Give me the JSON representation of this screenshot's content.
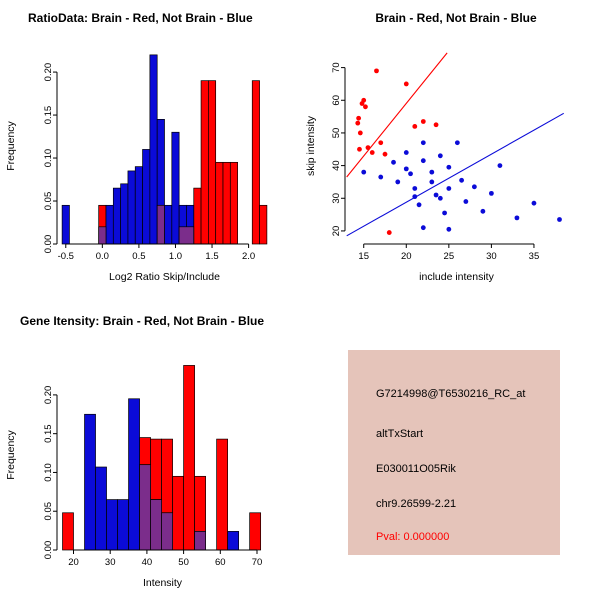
{
  "colors": {
    "red": "#ff0000",
    "blue": "#0b0bd8",
    "purple": "#7b2d8b",
    "axis": "#000000",
    "background": "#ffffff"
  },
  "chart_data": [
    {
      "type": "bar",
      "title": "RatioData: Brain - Red, Not Brain - Blue",
      "xlabel": "Log2 Ratio Skip/Include",
      "ylabel": "Frequency",
      "xlim": [
        -0.62,
        2.32
      ],
      "ylim": [
        0,
        0.228
      ],
      "xticks": [
        -0.5,
        0.0,
        0.5,
        1.0,
        1.5,
        2.0
      ],
      "xtick_labels": [
        "-0.5",
        "0.0",
        "0.5",
        "1.0",
        "1.5",
        "2.0"
      ],
      "yticks": [
        0.0,
        0.05,
        0.1,
        0.15,
        0.2
      ],
      "ytick_labels": [
        "0.00",
        "0.05",
        "0.10",
        "0.15",
        "0.20"
      ],
      "legend_note": "red = brain, blue = not brain, purple = overlap",
      "bars": [
        {
          "x0": -0.05,
          "x1": 0.05,
          "h": 0.045,
          "c": "red"
        },
        {
          "x0": 1.25,
          "x1": 1.35,
          "h": 0.065,
          "c": "red"
        },
        {
          "x0": 1.35,
          "x1": 1.45,
          "h": 0.19,
          "c": "red"
        },
        {
          "x0": 1.45,
          "x1": 1.55,
          "h": 0.19,
          "c": "red"
        },
        {
          "x0": 1.55,
          "x1": 1.65,
          "h": 0.095,
          "c": "red"
        },
        {
          "x0": 1.65,
          "x1": 1.75,
          "h": 0.095,
          "c": "red"
        },
        {
          "x0": 1.75,
          "x1": 1.85,
          "h": 0.095,
          "c": "red"
        },
        {
          "x0": 2.05,
          "x1": 2.15,
          "h": 0.19,
          "c": "red"
        },
        {
          "x0": 2.15,
          "x1": 2.25,
          "h": 0.045,
          "c": "red"
        },
        {
          "x0": -0.55,
          "x1": -0.45,
          "h": 0.045,
          "c": "blue"
        },
        {
          "x0": 0.05,
          "x1": 0.15,
          "h": 0.045,
          "c": "blue"
        },
        {
          "x0": 0.15,
          "x1": 0.25,
          "h": 0.065,
          "c": "blue"
        },
        {
          "x0": 0.25,
          "x1": 0.35,
          "h": 0.07,
          "c": "blue"
        },
        {
          "x0": 0.35,
          "x1": 0.45,
          "h": 0.085,
          "c": "blue"
        },
        {
          "x0": 0.45,
          "x1": 0.55,
          "h": 0.09,
          "c": "blue"
        },
        {
          "x0": 0.55,
          "x1": 0.65,
          "h": 0.11,
          "c": "blue"
        },
        {
          "x0": 0.65,
          "x1": 0.75,
          "h": 0.22,
          "c": "blue"
        },
        {
          "x0": 0.75,
          "x1": 0.85,
          "h": 0.145,
          "c": "blue"
        },
        {
          "x0": 0.85,
          "x1": 0.95,
          "h": 0.045,
          "c": "blue"
        },
        {
          "x0": 0.95,
          "x1": 1.05,
          "h": 0.13,
          "c": "blue"
        },
        {
          "x0": 1.05,
          "x1": 1.15,
          "h": 0.045,
          "c": "blue"
        },
        {
          "x0": 1.15,
          "x1": 1.25,
          "h": 0.045,
          "c": "blue"
        },
        {
          "x0": -0.05,
          "x1": 0.05,
          "h": 0.02,
          "c": "purple"
        },
        {
          "x0": 0.75,
          "x1": 0.85,
          "h": 0.045,
          "c": "purple"
        },
        {
          "x0": 1.05,
          "x1": 1.25,
          "h": 0.02,
          "c": "purple"
        }
      ]
    },
    {
      "type": "scatter",
      "title": "Brain - Red, Not Brain - Blue",
      "xlabel": "include intensity",
      "ylabel": "skip intensity",
      "xlim": [
        12.8,
        39
      ],
      "ylim": [
        16,
        76
      ],
      "xticks": [
        15,
        20,
        25,
        30,
        35
      ],
      "xtick_labels": [
        "15",
        "20",
        "25",
        "30",
        "35"
      ],
      "yticks": [
        20,
        30,
        40,
        50,
        60,
        70
      ],
      "ytick_labels": [
        "20",
        "30",
        "40",
        "50",
        "60",
        "70"
      ],
      "legend_note": "red = brain with red fit line, blue = not brain with blue fit line",
      "points": [
        {
          "x": 14.3,
          "y": 53,
          "c": "red"
        },
        {
          "x": 14.4,
          "y": 54.5,
          "c": "red"
        },
        {
          "x": 14.6,
          "y": 50,
          "c": "red"
        },
        {
          "x": 14.8,
          "y": 59,
          "c": "red"
        },
        {
          "x": 15.0,
          "y": 60,
          "c": "red"
        },
        {
          "x": 15.2,
          "y": 58,
          "c": "red"
        },
        {
          "x": 14.5,
          "y": 45,
          "c": "red"
        },
        {
          "x": 15.5,
          "y": 45.5,
          "c": "red"
        },
        {
          "x": 16.0,
          "y": 44,
          "c": "red"
        },
        {
          "x": 16.5,
          "y": 69,
          "c": "red"
        },
        {
          "x": 17.0,
          "y": 47,
          "c": "red"
        },
        {
          "x": 17.5,
          "y": 43.5,
          "c": "red"
        },
        {
          "x": 18.0,
          "y": 19.5,
          "c": "red"
        },
        {
          "x": 20.0,
          "y": 65,
          "c": "red"
        },
        {
          "x": 21.0,
          "y": 52,
          "c": "red"
        },
        {
          "x": 22.0,
          "y": 53.5,
          "c": "red"
        },
        {
          "x": 23.5,
          "y": 52.5,
          "c": "red"
        },
        {
          "x": 15.0,
          "y": 38,
          "c": "blue"
        },
        {
          "x": 17.0,
          "y": 36.5,
          "c": "blue"
        },
        {
          "x": 18.5,
          "y": 41,
          "c": "blue"
        },
        {
          "x": 19.0,
          "y": 35,
          "c": "blue"
        },
        {
          "x": 20.0,
          "y": 44,
          "c": "blue"
        },
        {
          "x": 20.0,
          "y": 39,
          "c": "blue"
        },
        {
          "x": 20.5,
          "y": 37.5,
          "c": "blue"
        },
        {
          "x": 21.0,
          "y": 33,
          "c": "blue"
        },
        {
          "x": 21.0,
          "y": 30.5,
          "c": "blue"
        },
        {
          "x": 21.5,
          "y": 28,
          "c": "blue"
        },
        {
          "x": 22.0,
          "y": 47,
          "c": "blue"
        },
        {
          "x": 22.0,
          "y": 41.5,
          "c": "blue"
        },
        {
          "x": 22.0,
          "y": 21,
          "c": "blue"
        },
        {
          "x": 23.0,
          "y": 38,
          "c": "blue"
        },
        {
          "x": 23.0,
          "y": 35,
          "c": "blue"
        },
        {
          "x": 23.5,
          "y": 31,
          "c": "blue"
        },
        {
          "x": 24.0,
          "y": 43,
          "c": "blue"
        },
        {
          "x": 24.0,
          "y": 30,
          "c": "blue"
        },
        {
          "x": 24.5,
          "y": 25.5,
          "c": "blue"
        },
        {
          "x": 25.0,
          "y": 39.5,
          "c": "blue"
        },
        {
          "x": 25.0,
          "y": 33,
          "c": "blue"
        },
        {
          "x": 25.0,
          "y": 20.5,
          "c": "blue"
        },
        {
          "x": 26.0,
          "y": 47,
          "c": "blue"
        },
        {
          "x": 26.5,
          "y": 35.5,
          "c": "blue"
        },
        {
          "x": 27.0,
          "y": 29,
          "c": "blue"
        },
        {
          "x": 28.0,
          "y": 33.5,
          "c": "blue"
        },
        {
          "x": 29.0,
          "y": 26,
          "c": "blue"
        },
        {
          "x": 30.0,
          "y": 31.5,
          "c": "blue"
        },
        {
          "x": 31.0,
          "y": 40,
          "c": "blue"
        },
        {
          "x": 33.0,
          "y": 24,
          "c": "blue"
        },
        {
          "x": 35.0,
          "y": 28.5,
          "c": "blue"
        },
        {
          "x": 38.0,
          "y": 23.5,
          "c": "blue"
        }
      ],
      "lines": [
        {
          "x1": 13,
          "y1": 36.5,
          "x2": 24.8,
          "y2": 74.5,
          "c": "red"
        },
        {
          "x1": 13,
          "y1": 18.5,
          "x2": 38.5,
          "y2": 56,
          "c": "blue"
        }
      ]
    },
    {
      "type": "bar",
      "title": "Gene Itensity: Brain - Red, Not Brain - Blue",
      "xlabel": "Intensity",
      "ylabel": "Frequency",
      "xlim": [
        15.5,
        73
      ],
      "ylim": [
        0,
        0.245
      ],
      "xticks": [
        20,
        30,
        40,
        50,
        60,
        70
      ],
      "xtick_labels": [
        "20",
        "30",
        "40",
        "50",
        "60",
        "70"
      ],
      "yticks": [
        0.0,
        0.05,
        0.1,
        0.15,
        0.2
      ],
      "ytick_labels": [
        "0.00",
        "0.05",
        "0.10",
        "0.15",
        "0.20"
      ],
      "legend_note": "red = brain, blue = not brain, purple = overlap",
      "bars": [
        {
          "x0": 17,
          "x1": 20,
          "h": 0.048,
          "c": "red"
        },
        {
          "x0": 38,
          "x1": 41,
          "h": 0.145,
          "c": "red"
        },
        {
          "x0": 41,
          "x1": 44,
          "h": 0.143,
          "c": "red"
        },
        {
          "x0": 44,
          "x1": 47,
          "h": 0.143,
          "c": "red"
        },
        {
          "x0": 47,
          "x1": 50,
          "h": 0.095,
          "c": "red"
        },
        {
          "x0": 50,
          "x1": 53,
          "h": 0.238,
          "c": "red"
        },
        {
          "x0": 53,
          "x1": 56,
          "h": 0.095,
          "c": "red"
        },
        {
          "x0": 59,
          "x1": 62,
          "h": 0.143,
          "c": "red"
        },
        {
          "x0": 68,
          "x1": 71,
          "h": 0.048,
          "c": "red"
        },
        {
          "x0": 23,
          "x1": 26,
          "h": 0.175,
          "c": "blue"
        },
        {
          "x0": 26,
          "x1": 29,
          "h": 0.107,
          "c": "blue"
        },
        {
          "x0": 29,
          "x1": 32,
          "h": 0.065,
          "c": "blue"
        },
        {
          "x0": 32,
          "x1": 35,
          "h": 0.065,
          "c": "blue"
        },
        {
          "x0": 35,
          "x1": 38,
          "h": 0.195,
          "c": "blue"
        },
        {
          "x0": 38,
          "x1": 41,
          "h": 0.11,
          "c": "blue"
        },
        {
          "x0": 41,
          "x1": 44,
          "h": 0.065,
          "c": "blue"
        },
        {
          "x0": 44,
          "x1": 47,
          "h": 0.048,
          "c": "blue"
        },
        {
          "x0": 53,
          "x1": 56,
          "h": 0.024,
          "c": "blue"
        },
        {
          "x0": 62,
          "x1": 65,
          "h": 0.024,
          "c": "blue"
        },
        {
          "x0": 38,
          "x1": 41,
          "h": 0.11,
          "c": "purple"
        },
        {
          "x0": 41,
          "x1": 44,
          "h": 0.065,
          "c": "purple"
        },
        {
          "x0": 44,
          "x1": 47,
          "h": 0.048,
          "c": "purple"
        },
        {
          "x0": 53,
          "x1": 56,
          "h": 0.024,
          "c": "purple"
        }
      ]
    }
  ],
  "info_panel": {
    "bg": "#e5c4ba",
    "lines": [
      "G7214998@T6530216_RC_at",
      "altTxStart",
      "E030011O05Rik",
      "chr9.26599-2.21"
    ],
    "pval": "Pval: 0.000000",
    "pval_color": "#ff0000"
  }
}
